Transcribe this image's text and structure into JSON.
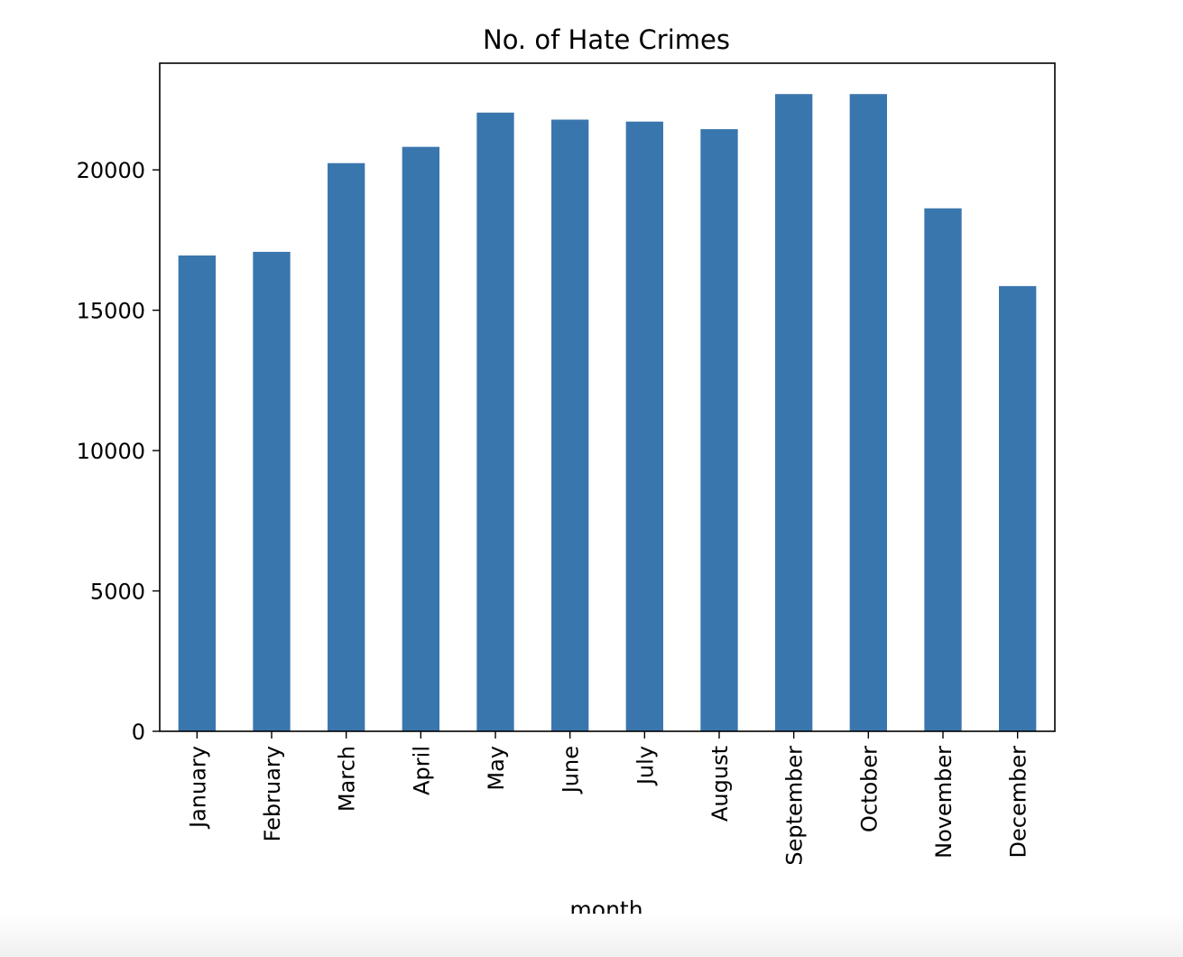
{
  "chart_data": {
    "type": "bar",
    "title": "No. of Hate Crimes",
    "xlabel": "month",
    "ylabel": "",
    "categories": [
      "January",
      "February",
      "March",
      "April",
      "May",
      "June",
      "July",
      "August",
      "September",
      "October",
      "November",
      "December"
    ],
    "values": [
      16950,
      17080,
      20240,
      20820,
      22040,
      21790,
      21720,
      21450,
      22700,
      22700,
      18630,
      15860
    ],
    "ylim": [
      0,
      23800
    ],
    "yticks": [
      0,
      5000,
      10000,
      15000,
      20000
    ],
    "bar_color": "#3a76ae",
    "grid": false,
    "legend": "none"
  }
}
